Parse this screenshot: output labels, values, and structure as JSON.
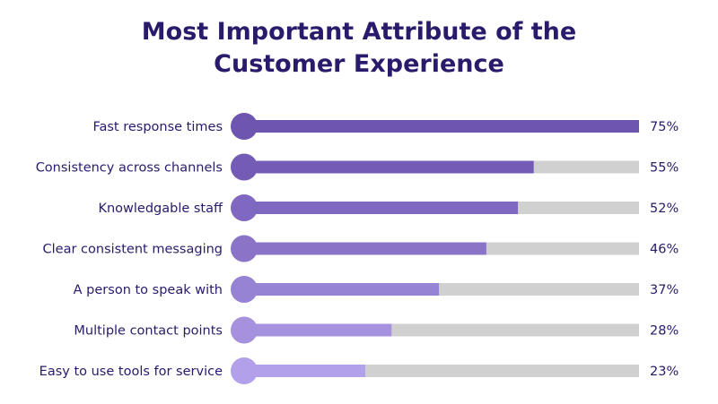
{
  "chart_data": {
    "type": "bar",
    "orientation": "horizontal",
    "title_lines": [
      "Most Important Attribute of the",
      "Customer Experience"
    ],
    "categories": [
      "Fast response times",
      "Consistency across channels",
      "Knowledgable staff",
      "Clear consistent messaging",
      "A person to speak with",
      "Multiple contact points",
      "Easy to use tools for service"
    ],
    "values": [
      75,
      55,
      52,
      46,
      37,
      28,
      23
    ],
    "value_labels": [
      "75%",
      "55%",
      "52%",
      "46%",
      "37%",
      "28%",
      "23%"
    ],
    "xlim": [
      0,
      75
    ],
    "bar_colors": [
      "#6e56b0",
      "#745cb6",
      "#7e68c0",
      "#8a74c8",
      "#9783d3",
      "#a591de",
      "#b3a0ea"
    ],
    "track_color": "#d0d0d0",
    "text_color": "#2a1a6b",
    "grid": false,
    "legend": "none"
  }
}
